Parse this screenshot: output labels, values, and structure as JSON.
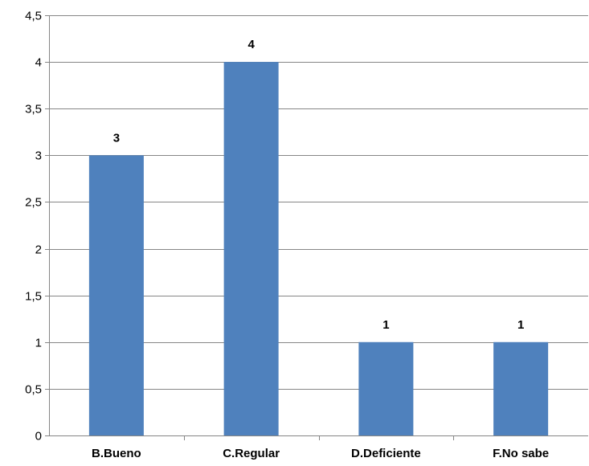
{
  "chart_data": {
    "type": "bar",
    "title": "",
    "xlabel": "",
    "ylabel": "",
    "categories": [
      "B.Bueno",
      "C.Regular",
      "D.Deficiente",
      "F.No sabe"
    ],
    "values": [
      3,
      4,
      1,
      1
    ],
    "data_labels": [
      "3",
      "4",
      "1",
      "1"
    ],
    "ylim": [
      0,
      4.5
    ],
    "yticks": [
      0,
      0.5,
      1,
      1.5,
      2,
      2.5,
      3,
      3.5,
      4,
      4.5
    ],
    "ytick_labels": [
      "0",
      "0,5",
      "1",
      "1,5",
      "2",
      "2,5",
      "3",
      "3,5",
      "4",
      "4,5"
    ],
    "grid": true,
    "legend": "none",
    "bar_color": "#4F81BD",
    "grid_color": "#868686",
    "axis_color": "#868686"
  }
}
